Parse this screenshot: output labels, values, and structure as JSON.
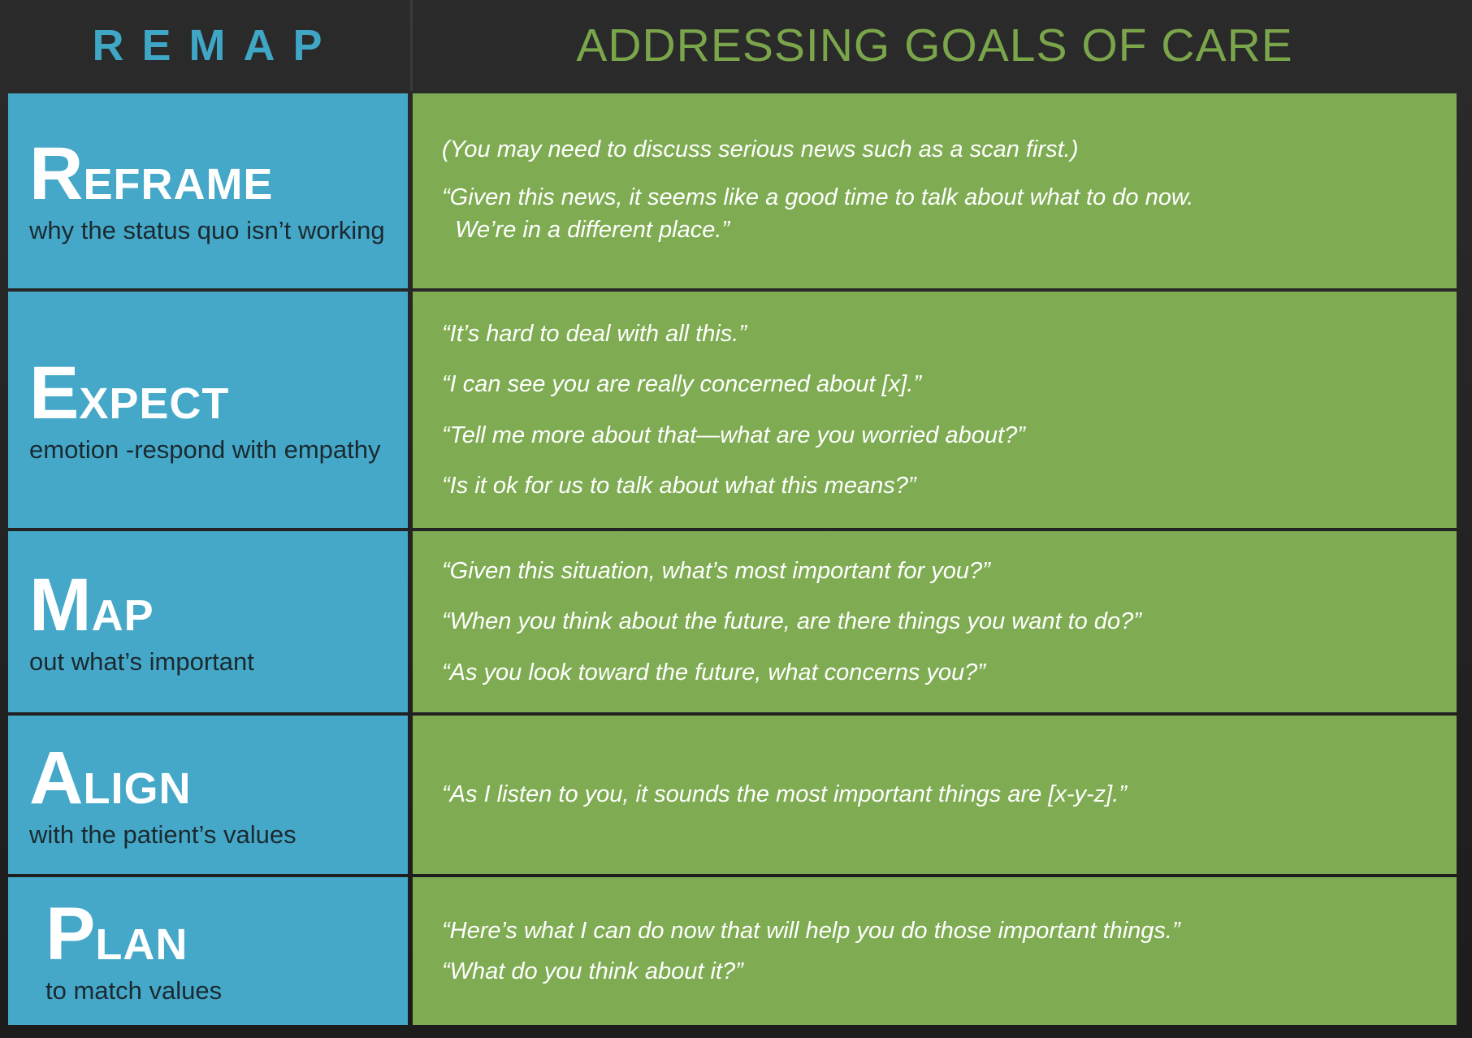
{
  "header": {
    "left": "REMAP",
    "right": "ADDRESSING GOALS OF CARE"
  },
  "rows": [
    {
      "letter": "R",
      "rest": "EFRAME",
      "subtitle": "why the status quo isn’t working",
      "phrases": [
        "(You may need to discuss serious news such as a scan first.)",
        "“Given this news, it seems like a good time to talk about what to do now.\n  We’re in a different place.”"
      ]
    },
    {
      "letter": "E",
      "rest": "XPECT",
      "subtitle": "emotion -respond with empathy",
      "phrases": [
        "“It’s hard to deal with all this.”",
        "“I can see you are really concerned about [x].”",
        "“Tell me more about that—what are you worried about?”",
        "“Is it ok for us to talk about what this means?”"
      ]
    },
    {
      "letter": "M",
      "rest": "AP",
      "subtitle": "out what’s important",
      "phrases": [
        "“Given this situation, what’s most important for you?”",
        "“When you think about the future, are there things you want to do?”",
        "“As you look toward the future, what concerns you?”"
      ]
    },
    {
      "letter": "A",
      "rest": "LIGN",
      "subtitle": "with the patient’s values",
      "phrases": [
        "“As I listen to you, it sounds the most important things are [x-y-z].”"
      ]
    },
    {
      "letter": "P",
      "rest": "LAN",
      "subtitle": "to match values",
      "phrases": [
        "“Here’s what I can do now that will help you do those important things.”",
        "“What do you think about it?”"
      ]
    }
  ]
}
